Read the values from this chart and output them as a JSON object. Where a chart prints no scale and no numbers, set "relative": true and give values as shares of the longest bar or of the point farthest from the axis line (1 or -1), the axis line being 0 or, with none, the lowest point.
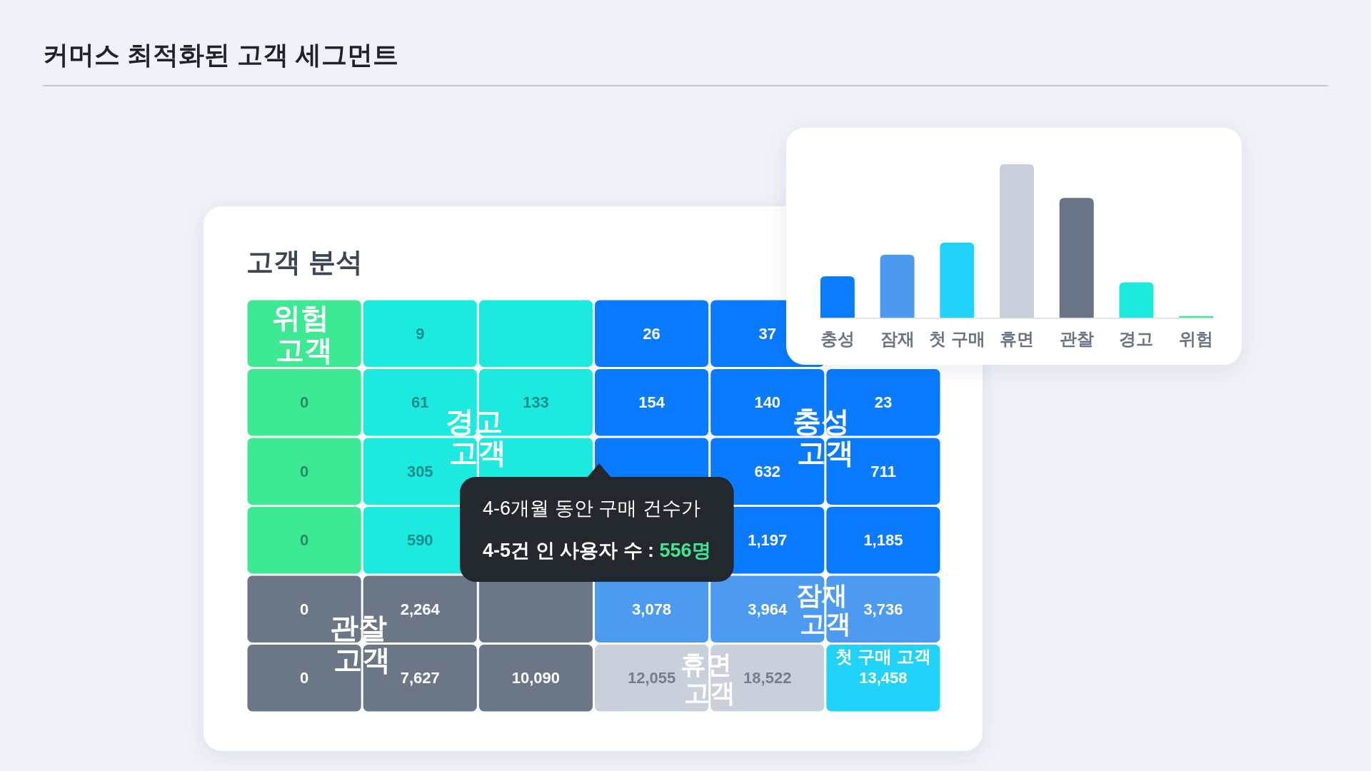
{
  "chart_data": [
    {
      "type": "heatmap",
      "title": "커머스 최적화된 고객 세그먼트",
      "subtitle": "고객 분석",
      "categories": [
        null,
        null,
        null,
        null,
        null,
        null
      ],
      "y_categories": [
        null,
        null,
        null,
        null,
        null,
        null
      ],
      "cells": [
        [
          null,
          9,
          null,
          26,
          37,
          null
        ],
        [
          0,
          61,
          133,
          154,
          140,
          23
        ],
        [
          0,
          305,
          null,
          null,
          632,
          711
        ],
        [
          0,
          590,
          null,
          null,
          1197,
          1185
        ],
        [
          0,
          2264,
          null,
          3078,
          3964,
          3736
        ],
        [
          0,
          7627,
          10090,
          12055,
          18522,
          13458
        ]
      ],
      "cell_labels": [
        [
          null,
          "9",
          null,
          "26",
          "37",
          null
        ],
        [
          "0",
          "61",
          "133",
          "154",
          "140",
          "23"
        ],
        [
          "0",
          "305",
          null,
          null,
          "632",
          "711"
        ],
        [
          "0",
          "590",
          null,
          null,
          "1,197",
          "1,185"
        ],
        [
          "0",
          "2,264",
          null,
          "3,078",
          "3,964",
          "3,736"
        ],
        [
          "0",
          "7,627",
          "10,090",
          "12,055",
          "18,522",
          "13,458"
        ]
      ],
      "colors": [
        [
          "#3de993",
          "#1deadf",
          "#1deadf",
          "#0a7bff",
          "#0a7bff",
          "#0a7bff"
        ],
        [
          "#3de993",
          "#1deadf",
          "#1deadf",
          "#0a7bff",
          "#0a7bff",
          "#0a7bff"
        ],
        [
          "#3de993",
          "#1deadf",
          "#1deadf",
          "#0a7bff",
          "#0a7bff",
          "#0a7bff"
        ],
        [
          "#3de993",
          "#1deadf",
          "#1deadf",
          "#0a7bff",
          "#0a7bff",
          "#0a7bff"
        ],
        [
          "#6b7686",
          "#6b7686",
          "#6b7686",
          "#4c9bf0",
          "#4c9bf0",
          "#4c9bf0"
        ],
        [
          "#6b7686",
          "#6b7686",
          "#6b7686",
          "#c9d0dc",
          "#c9d0dc",
          "#22d3f9"
        ]
      ],
      "annotations": [
        "위험 고객",
        "경고 고객",
        "충성 고객",
        "관찰 고객",
        "잠재 고객",
        "휴면 고객",
        "첫 구매 고객",
        "4-6개월 동안 구매 건수가",
        "4-5건 인 사용자 수 : 556명"
      ]
    },
    {
      "type": "bar",
      "relative": true,
      "categories": [
        "충성",
        "잠재",
        "첫 구매",
        "휴면",
        "관찰",
        "경고",
        "위험"
      ],
      "values": [
        0.27,
        0.41,
        0.49,
        1,
        0.78,
        0.23,
        0.01
      ],
      "colors": [
        "#0b7bff",
        "#4b9af0",
        "#22d2f9",
        "#c8cfdb",
        "#687485",
        "#1de9dc",
        "#3de88f"
      ]
    }
  ]
}
